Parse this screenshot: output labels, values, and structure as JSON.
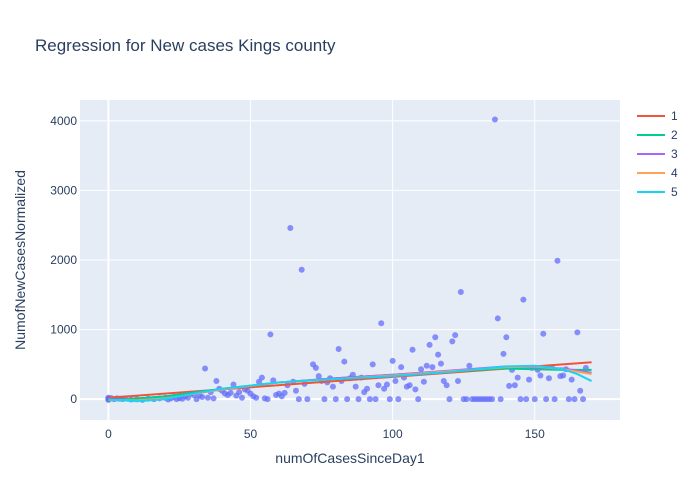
{
  "chart_data": {
    "type": "scatter",
    "title": "Regression for New cases Kings county",
    "xlabel": "numOfCasesSinceDay1",
    "ylabel": "NumofNewCasesNormalized",
    "xlim": [
      -10,
      180
    ],
    "ylim": [
      -300,
      4300
    ],
    "x_ticks": [
      0,
      50,
      100,
      150
    ],
    "y_ticks": [
      0,
      1000,
      2000,
      3000,
      4000
    ],
    "grid": true,
    "legend_position": "top-right",
    "scatter_color": "#636efa",
    "points": [
      [
        0,
        0
      ],
      [
        0,
        10
      ],
      [
        0,
        -10
      ],
      [
        0,
        20
      ],
      [
        0,
        5
      ],
      [
        1,
        15
      ],
      [
        2,
        0
      ],
      [
        3,
        10
      ],
      [
        4,
        5
      ],
      [
        5,
        0
      ],
      [
        6,
        10
      ],
      [
        8,
        -5
      ],
      [
        10,
        0
      ],
      [
        12,
        -10
      ],
      [
        14,
        5
      ],
      [
        16,
        0
      ],
      [
        18,
        10
      ],
      [
        20,
        20
      ],
      [
        21,
        -5
      ],
      [
        22,
        10
      ],
      [
        23,
        30
      ],
      [
        24,
        0
      ],
      [
        25,
        15
      ],
      [
        26,
        5
      ],
      [
        27,
        40
      ],
      [
        28,
        20
      ],
      [
        29,
        80
      ],
      [
        30,
        60
      ],
      [
        31,
        0
      ],
      [
        32,
        50
      ],
      [
        33,
        30
      ],
      [
        34,
        440
      ],
      [
        35,
        20
      ],
      [
        36,
        100
      ],
      [
        37,
        10
      ],
      [
        38,
        260
      ],
      [
        39,
        150
      ],
      [
        40,
        120
      ],
      [
        41,
        80
      ],
      [
        42,
        60
      ],
      [
        43,
        90
      ],
      [
        44,
        210
      ],
      [
        45,
        50
      ],
      [
        46,
        100
      ],
      [
        47,
        20
      ],
      [
        48,
        140
      ],
      [
        49,
        120
      ],
      [
        50,
        80
      ],
      [
        51,
        40
      ],
      [
        52,
        20
      ],
      [
        53,
        250
      ],
      [
        54,
        310
      ],
      [
        55,
        10
      ],
      [
        56,
        0
      ],
      [
        57,
        930
      ],
      [
        58,
        270
      ],
      [
        59,
        60
      ],
      [
        60,
        80
      ],
      [
        61,
        40
      ],
      [
        62,
        90
      ],
      [
        63,
        200
      ],
      [
        64,
        2460
      ],
      [
        65,
        250
      ],
      [
        66,
        120
      ],
      [
        67,
        0
      ],
      [
        68,
        1860
      ],
      [
        69,
        220
      ],
      [
        70,
        0
      ],
      [
        72,
        500
      ],
      [
        73,
        450
      ],
      [
        74,
        330
      ],
      [
        75,
        260
      ],
      [
        76,
        0
      ],
      [
        77,
        240
      ],
      [
        78,
        300
      ],
      [
        79,
        180
      ],
      [
        80,
        0
      ],
      [
        81,
        720
      ],
      [
        82,
        260
      ],
      [
        83,
        540
      ],
      [
        84,
        0
      ],
      [
        85,
        300
      ],
      [
        86,
        350
      ],
      [
        87,
        180
      ],
      [
        88,
        0
      ],
      [
        89,
        310
      ],
      [
        90,
        100
      ],
      [
        91,
        150
      ],
      [
        92,
        0
      ],
      [
        93,
        500
      ],
      [
        94,
        0
      ],
      [
        95,
        200
      ],
      [
        96,
        1090
      ],
      [
        97,
        150
      ],
      [
        98,
        210
      ],
      [
        99,
        0
      ],
      [
        100,
        550
      ],
      [
        101,
        260
      ],
      [
        102,
        0
      ],
      [
        103,
        460
      ],
      [
        104,
        310
      ],
      [
        105,
        180
      ],
      [
        106,
        200
      ],
      [
        107,
        710
      ],
      [
        108,
        140
      ],
      [
        109,
        0
      ],
      [
        110,
        430
      ],
      [
        111,
        250
      ],
      [
        112,
        480
      ],
      [
        113,
        780
      ],
      [
        114,
        460
      ],
      [
        115,
        890
      ],
      [
        116,
        640
      ],
      [
        117,
        510
      ],
      [
        118,
        260
      ],
      [
        119,
        200
      ],
      [
        120,
        0
      ],
      [
        121,
        830
      ],
      [
        122,
        920
      ],
      [
        123,
        260
      ],
      [
        124,
        1540
      ],
      [
        125,
        0
      ],
      [
        126,
        0
      ],
      [
        127,
        480
      ],
      [
        128,
        0
      ],
      [
        129,
        0
      ],
      [
        130,
        0
      ],
      [
        131,
        0
      ],
      [
        132,
        0
      ],
      [
        133,
        0
      ],
      [
        134,
        0
      ],
      [
        135,
        0
      ],
      [
        136,
        4020
      ],
      [
        137,
        1160
      ],
      [
        138,
        0
      ],
      [
        139,
        650
      ],
      [
        140,
        890
      ],
      [
        141,
        190
      ],
      [
        142,
        420
      ],
      [
        143,
        200
      ],
      [
        144,
        310
      ],
      [
        145,
        0
      ],
      [
        146,
        1430
      ],
      [
        147,
        0
      ],
      [
        148,
        280
      ],
      [
        149,
        450
      ],
      [
        150,
        0
      ],
      [
        151,
        420
      ],
      [
        152,
        340
      ],
      [
        153,
        940
      ],
      [
        154,
        0
      ],
      [
        155,
        300
      ],
      [
        156,
        460
      ],
      [
        157,
        0
      ],
      [
        158,
        1990
      ],
      [
        159,
        330
      ],
      [
        160,
        340
      ],
      [
        161,
        430
      ],
      [
        162,
        0
      ],
      [
        163,
        280
      ],
      [
        164,
        0
      ],
      [
        165,
        960
      ],
      [
        166,
        120
      ],
      [
        167,
        0
      ],
      [
        168,
        450
      ]
    ],
    "series": [
      {
        "name": "1",
        "color": "#ef553b",
        "x": [
          0,
          170
        ],
        "y": [
          20,
          530
        ]
      },
      {
        "name": "2",
        "color": "#00cc96",
        "x": [
          0,
          20,
          40,
          60,
          80,
          100,
          120,
          140,
          160,
          170
        ],
        "y": [
          -20,
          40,
          150,
          240,
          300,
          350,
          400,
          440,
          420,
          420
        ]
      },
      {
        "name": "3",
        "color": "#ab63fa",
        "x": [
          0,
          10,
          20,
          40,
          60,
          80,
          100,
          120,
          140,
          160,
          170
        ],
        "y": [
          -10,
          -25,
          10,
          140,
          240,
          300,
          350,
          410,
          470,
          440,
          380
        ]
      },
      {
        "name": "4",
        "color": "#ffa15a",
        "x": [
          0,
          10,
          20,
          40,
          60,
          80,
          100,
          120,
          140,
          150,
          160,
          170
        ],
        "y": [
          -10,
          -20,
          10,
          140,
          240,
          290,
          340,
          400,
          460,
          470,
          430,
          360
        ]
      },
      {
        "name": "5",
        "color": "#19d3f3",
        "x": [
          0,
          10,
          20,
          30,
          40,
          60,
          80,
          100,
          120,
          140,
          150,
          160,
          165,
          170
        ],
        "y": [
          -5,
          -30,
          0,
          80,
          150,
          240,
          290,
          330,
          390,
          470,
          480,
          430,
          360,
          260
        ]
      }
    ]
  }
}
